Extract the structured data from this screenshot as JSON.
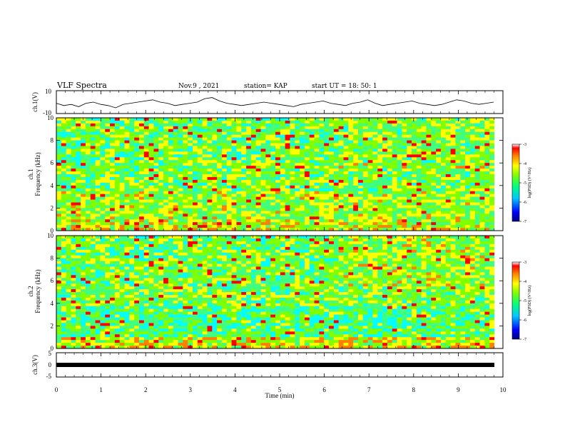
{
  "header": {
    "title": "VLF Spectra",
    "date": "Nov.9 , 2021",
    "station": "station= KAP",
    "start_ut": "start UT = 18: 50: 1"
  },
  "colors": {
    "colormap": [
      "#00007f",
      "#0000ff",
      "#0080ff",
      "#00ffff",
      "#40ff80",
      "#80ff00",
      "#ffff00",
      "#ff8000",
      "#ff0000",
      "#ffffff"
    ],
    "line": "#000000"
  },
  "chart_data": [
    {
      "type": "line",
      "ylabel": "ch.1(V)",
      "ylim": [
        -10,
        10
      ],
      "yticks": [
        "10",
        "-10"
      ],
      "series": [
        {
          "values": [
            -1,
            -3,
            -2,
            -4,
            -1,
            0,
            -2,
            -3,
            -5,
            -2,
            -1,
            0,
            1,
            2,
            0,
            -1,
            -3,
            -2,
            -1,
            0,
            3,
            4,
            1,
            -1,
            -2,
            -3,
            -2,
            -1,
            0,
            -1,
            -2,
            -3,
            -4,
            -2,
            -1,
            0,
            1,
            -1,
            -2,
            -3,
            -1,
            0,
            2,
            -1,
            -3,
            -2,
            -1,
            0,
            1,
            -1,
            -2,
            -3,
            -2,
            0,
            2,
            1,
            -1,
            -2,
            -1,
            0
          ]
        }
      ]
    },
    {
      "type": "heatmap",
      "ylabel": "ch.1\nFrequency (kHz)",
      "ylim": [
        0,
        10
      ],
      "yticks": [
        "0",
        "2",
        "4",
        "6",
        "8",
        "10"
      ],
      "colorbar": {
        "label": "log(PSD) (V²/Hz)",
        "range": [
          -7,
          -3
        ],
        "ticks": [
          "-3",
          "-4",
          "-5",
          "-6",
          "-7"
        ]
      }
    },
    {
      "type": "heatmap",
      "ylabel": "ch.2\nFrequency (kHz)",
      "ylim": [
        0,
        10
      ],
      "yticks": [
        "0",
        "2",
        "4",
        "6",
        "8",
        "10"
      ],
      "colorbar": {
        "label": "log(PSD) (V²/Hz)",
        "range": [
          -7,
          -3
        ],
        "ticks": [
          "-3",
          "-4",
          "-5",
          "-6",
          "-7"
        ]
      }
    },
    {
      "type": "line",
      "ylabel": "ch.3(V)",
      "ylim": [
        -5,
        5
      ],
      "yticks": [
        "5",
        "0",
        "-5"
      ],
      "series": [
        {
          "values": [
            -0.1,
            -0.1
          ]
        }
      ]
    }
  ],
  "xaxis": {
    "label": "Time (min)",
    "range": [
      0,
      10
    ],
    "ticks": [
      "0",
      "1",
      "2",
      "3",
      "4",
      "5",
      "6",
      "7",
      "8",
      "9",
      "10"
    ]
  }
}
